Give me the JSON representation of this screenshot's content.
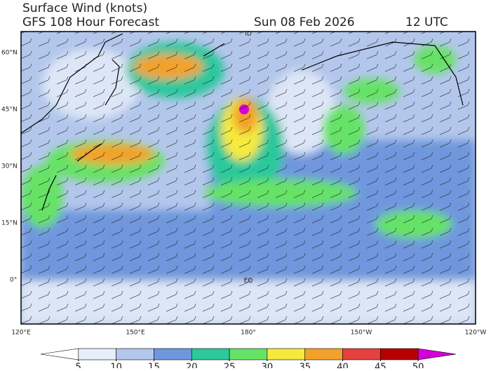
{
  "header": {
    "title": "Surface Wind (knots)",
    "subtitle": "GFS 108 Hour Forecast",
    "date": "Sun 08 Feb 2026",
    "time": "12 UTC"
  },
  "map": {
    "lat_labels": [
      "60°N",
      "45°N",
      "30°N",
      "15°N",
      "0°"
    ],
    "lon_labels": [
      "120°E",
      "150°E",
      "180°",
      "150°W",
      "120°W"
    ],
    "equator_label": "EQ",
    "dateline_label": "ID"
  },
  "colorbar": {
    "ticks": [
      5,
      10,
      15,
      20,
      25,
      30,
      35,
      40,
      45,
      50
    ],
    "colors": [
      "#ffffff",
      "#e6eef9",
      "#b3c7ec",
      "#6f97dd",
      "#2cc89c",
      "#66e266",
      "#f5ea3c",
      "#f2a22c",
      "#e64040",
      "#b80000",
      "#d600d6"
    ]
  }
}
